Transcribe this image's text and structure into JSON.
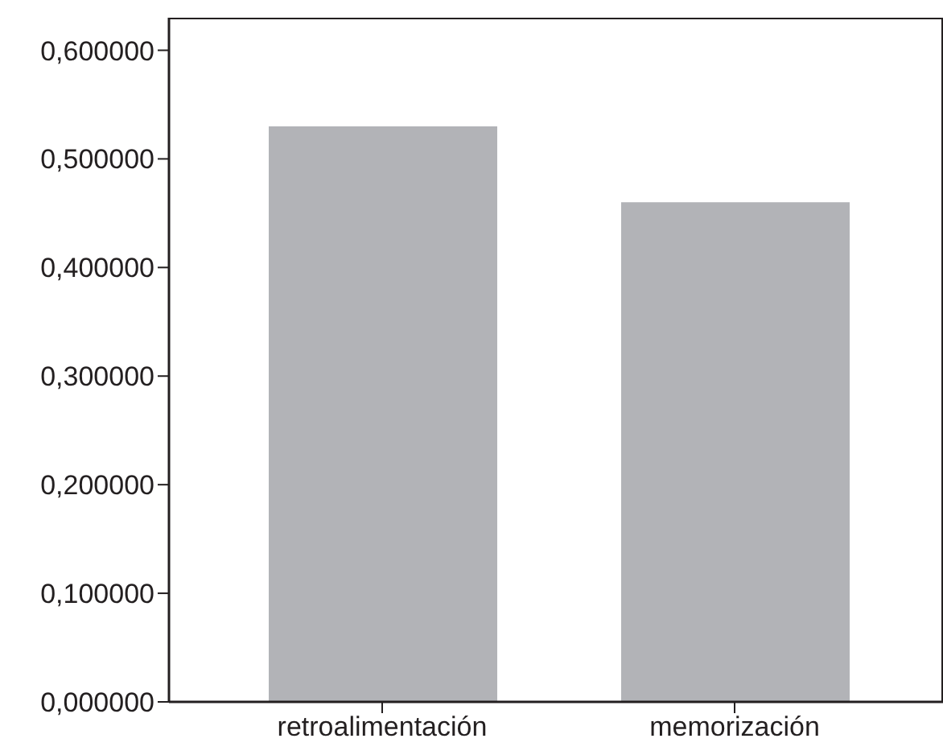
{
  "chart_data": {
    "type": "bar",
    "categories": [
      "retroalimentación",
      "memorización"
    ],
    "values": [
      0.53,
      0.46
    ],
    "color": "#b2b3b7",
    "ylim": [
      0,
      0.63
    ],
    "yticks": [
      {
        "value": 0,
        "label": "0,000000"
      },
      {
        "value": 0.1,
        "label": "0,100000"
      },
      {
        "value": 0.2,
        "label": "0,200000"
      },
      {
        "value": 0.3,
        "label": "0,300000"
      },
      {
        "value": 0.4,
        "label": "0,400000"
      },
      {
        "value": 0.5,
        "label": "0,500000"
      },
      {
        "value": 0.6,
        "label": "0,600000"
      }
    ],
    "grid": false,
    "legend": false
  }
}
